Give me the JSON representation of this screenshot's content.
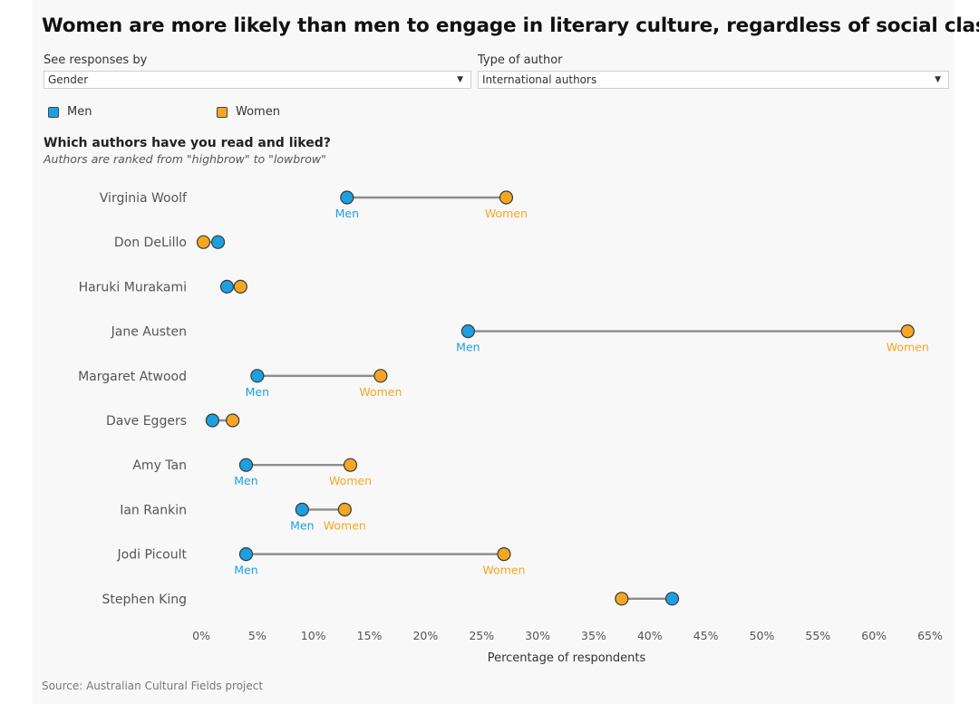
{
  "title": "Women are more likely than men to engage in literary culture, regardless of social class.",
  "filters": {
    "responses_by": {
      "label": "See responses by",
      "value": "Gender"
    },
    "author_type": {
      "label": "Type of author",
      "value": "International authors"
    }
  },
  "legend": [
    {
      "name": "Men",
      "color": "#1ba1e2"
    },
    {
      "name": "Women",
      "color": "#f5a623"
    }
  ],
  "source": "Source: Australian Cultural Fields project",
  "chart_data": {
    "type": "dot-range",
    "subtitle": "Which authors have you read and liked?",
    "note": "Authors are ranked from \"highbrow\"  to \"lowbrow\"",
    "xlabel": "Percentage of respondents",
    "xlim": [
      0,
      65
    ],
    "xticks": [
      0,
      5,
      10,
      15,
      20,
      25,
      30,
      35,
      40,
      45,
      50,
      55,
      60,
      65
    ],
    "tick_suffix": "%",
    "series": [
      {
        "name": "Men",
        "color": "#1ba1e2"
      },
      {
        "name": "Women",
        "color": "#f5a623"
      }
    ],
    "authors": [
      {
        "name": "Virginia Woolf",
        "men": 13,
        "women": 27.2,
        "labeled": true
      },
      {
        "name": "Don DeLillo",
        "men": 1.5,
        "women": 0.2,
        "labeled": false
      },
      {
        "name": "Haruki Murakami",
        "men": 2.3,
        "women": 3.5,
        "labeled": false
      },
      {
        "name": "Jane Austen",
        "men": 23.8,
        "women": 63,
        "labeled": true
      },
      {
        "name": "Margaret Atwood",
        "men": 5,
        "women": 16,
        "labeled": true
      },
      {
        "name": "Dave Eggers",
        "men": 1,
        "women": 2.8,
        "labeled": false
      },
      {
        "name": "Amy Tan",
        "men": 4,
        "women": 13.3,
        "labeled": true
      },
      {
        "name": "Ian Rankin",
        "men": 9,
        "women": 12.8,
        "labeled": true
      },
      {
        "name": "Jodi Picoult",
        "men": 4,
        "women": 27,
        "labeled": true
      },
      {
        "name": "Stephen King",
        "men": 42,
        "women": 37.5,
        "labeled": false
      }
    ]
  }
}
